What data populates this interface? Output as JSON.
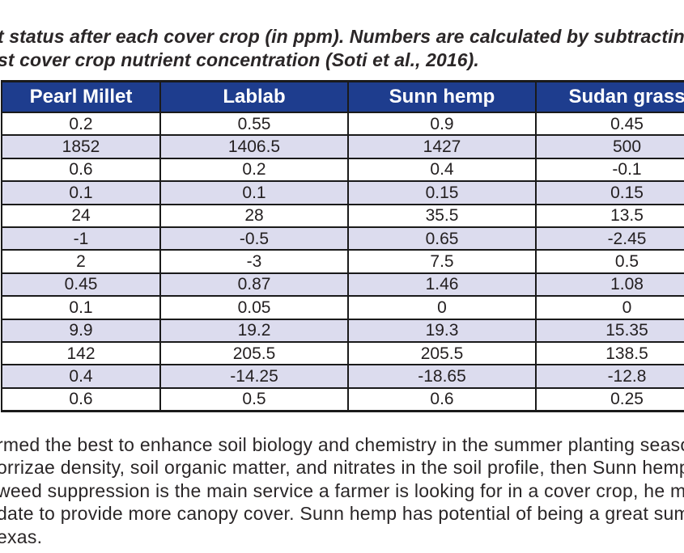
{
  "caption": {
    "line1": "t status after each cover crop (in ppm). Numbers are calculated by subtracting the pr",
    "line2": "st cover crop nutrient concentration (Soti et al., 2016)."
  },
  "table": {
    "headers": [
      "Pearl Millet",
      "Lablab",
      "Sunn hemp",
      "Sudan grass"
    ],
    "rows": [
      [
        "0.2",
        "0.55",
        "0.9",
        "0.45"
      ],
      [
        "1852",
        "1406.5",
        "1427",
        "500"
      ],
      [
        "0.6",
        "0.2",
        "0.4",
        "-0.1"
      ],
      [
        "0.1",
        "0.1",
        "0.15",
        "0.15"
      ],
      [
        "24",
        "28",
        "35.5",
        "13.5"
      ],
      [
        "-1",
        "-0.5",
        "0.65",
        "-2.45"
      ],
      [
        "2",
        "-3",
        "7.5",
        "0.5"
      ],
      [
        "0.45",
        "0.87",
        "1.46",
        "1.08"
      ],
      [
        "0.1",
        "0.05",
        "0",
        "0"
      ],
      [
        "9.9",
        "19.2",
        "19.3",
        "15.35"
      ],
      [
        "142",
        "205.5",
        "205.5",
        "138.5"
      ],
      [
        "0.4",
        "-14.25",
        "-18.65",
        "-12.8"
      ],
      [
        "0.6",
        "0.5",
        "0.6",
        "0.25"
      ]
    ]
  },
  "paragraph": {
    "lines": [
      "rmed the best to enhance soil biology and chemistry in the summer planting seaso",
      "orrizae density, soil organic matter, and nitrates in the soil profile, then Sunn hemp",
      "weed suppression is the main service a farmer is looking for in a cover crop, he may",
      "date to provide more canopy cover. Sunn hemp has potential of being a great summ",
      "exas."
    ]
  },
  "colors": {
    "header_bg": "#1e3d8e",
    "header_text": "#ffffff",
    "alt_row_bg": "#dcdcee",
    "border": "#1a1a1a",
    "text": "#231f20"
  }
}
